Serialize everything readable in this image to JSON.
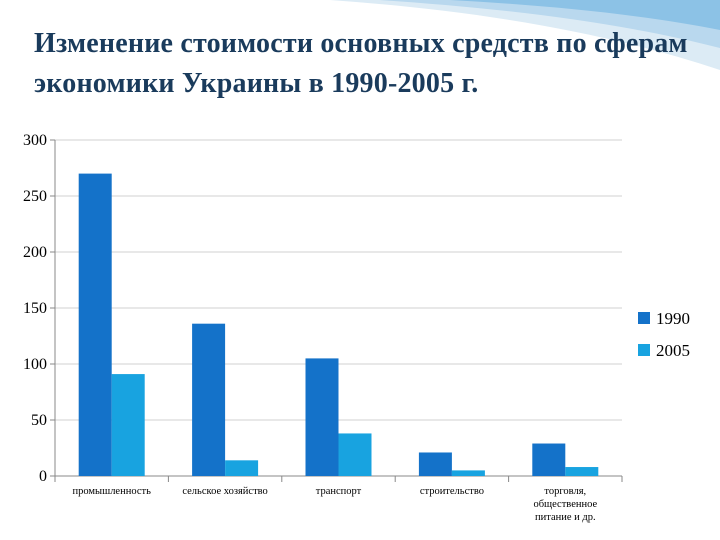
{
  "title": "Изменение стоимости основных средств по сферам экономики Украины в 1990-2005 г.",
  "colors": {
    "series_1990": "#1472c9",
    "series_2005": "#18a3e0",
    "grid": "#d0d0d0",
    "title": "#1a3b5c"
  },
  "chart_data": {
    "type": "bar",
    "categories": [
      [
        "промышленность"
      ],
      [
        "сельское хозяйство"
      ],
      [
        "транспорт"
      ],
      [
        "строительство"
      ],
      [
        "торговля,",
        "общественное",
        "питание и др."
      ]
    ],
    "series": [
      {
        "name": "1990",
        "values": [
          270,
          136,
          105,
          21,
          29
        ]
      },
      {
        "name": "2005",
        "values": [
          91,
          14,
          38,
          5,
          8
        ]
      }
    ],
    "ylim": [
      0,
      300
    ],
    "yticks": [
      0,
      50,
      100,
      150,
      200,
      250,
      300
    ],
    "grid": true,
    "legend": "right",
    "xlabel": "",
    "ylabel": ""
  }
}
